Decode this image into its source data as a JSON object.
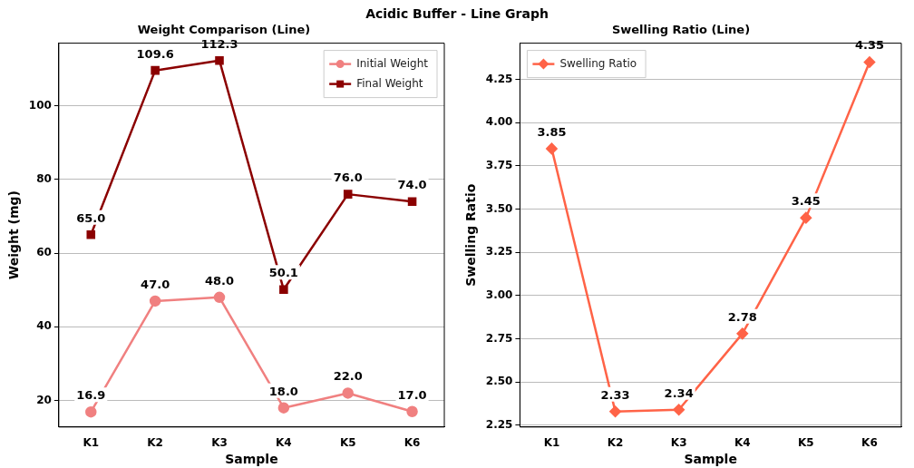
{
  "chart_data": [
    {
      "type": "line",
      "title": "Weight Comparison (Line)",
      "annotations": [
        "Acidic Buffer - Line Graph"
      ],
      "xlabel": "Sample",
      "ylabel": "Weight (mg)",
      "categories": [
        "K1",
        "K2",
        "K3",
        "K4",
        "K5",
        "K6"
      ],
      "ylim": [
        12.8,
        117
      ],
      "yticks": [
        20,
        40,
        60,
        80,
        100
      ],
      "grid": "y",
      "legend": "top right",
      "series": [
        {
          "name": "Initial Weight",
          "color": "#f08080",
          "marker": "circle",
          "values": [
            16.9,
            47.0,
            48.0,
            18.0,
            22.0,
            17.0
          ],
          "value_labels": [
            "16.9",
            "47.0",
            "48.0",
            "18.0",
            "22.0",
            "17.0"
          ]
        },
        {
          "name": "Final Weight",
          "color": "#8b0000",
          "marker": "square",
          "values": [
            65.0,
            109.6,
            112.3,
            50.1,
            76.0,
            74.0
          ],
          "value_labels": [
            "65.0",
            "109.6",
            "112.3",
            "50.1",
            "76.0",
            "74.0"
          ]
        }
      ]
    },
    {
      "type": "line",
      "title": "Swelling Ratio (Line)",
      "xlabel": "Sample",
      "ylabel": "Swelling Ratio",
      "categories": [
        "K1",
        "K2",
        "K3",
        "K4",
        "K5",
        "K6"
      ],
      "ylim": [
        2.24,
        4.46
      ],
      "yticks": [
        2.25,
        {
          "value": 2.5,
          "label": "2.50"
        },
        2.75,
        {
          "value": 3.0,
          "label": "3.00"
        },
        3.25,
        {
          "value": 3.5,
          "label": "3.50"
        },
        3.75,
        {
          "value": 4.0,
          "label": "4.00"
        },
        4.25
      ],
      "grid": "y",
      "legend": "top left",
      "data_labels": true,
      "series": [
        {
          "name": "Swelling Ratio",
          "color": "#ff6347",
          "marker": "diamond",
          "values": [
            3.85,
            2.33,
            2.34,
            2.78,
            3.45,
            4.35
          ]
        }
      ]
    }
  ]
}
